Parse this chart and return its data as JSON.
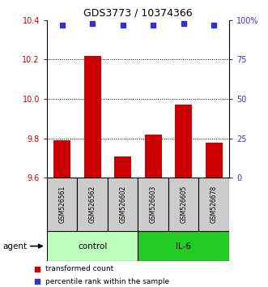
{
  "title": "GDS3773 / 10374366",
  "samples": [
    "GSM526561",
    "GSM526562",
    "GSM526602",
    "GSM526603",
    "GSM526605",
    "GSM526678"
  ],
  "bar_values": [
    9.79,
    10.22,
    9.71,
    9.82,
    9.97,
    9.78
  ],
  "percentile_values": [
    97,
    98,
    97,
    97,
    98,
    97
  ],
  "ylim_left": [
    9.6,
    10.4
  ],
  "ylim_right": [
    0,
    100
  ],
  "yticks_left": [
    9.6,
    9.8,
    10.0,
    10.2,
    10.4
  ],
  "yticks_right": [
    0,
    25,
    50,
    75,
    100
  ],
  "bar_color": "#cc0000",
  "dot_color": "#3333cc",
  "bar_baseline": 9.6,
  "group_spans": [
    {
      "label": "control",
      "xstart": -0.5,
      "xend": 2.5,
      "color": "#bbffbb"
    },
    {
      "label": "IL-6",
      "xstart": 2.5,
      "xend": 5.5,
      "color": "#22cc22"
    }
  ],
  "legend_items": [
    {
      "color": "#cc0000",
      "label": "transformed count"
    },
    {
      "color": "#3333cc",
      "label": "percentile rank within the sample"
    }
  ],
  "background_color": "#ffffff",
  "sample_box_color": "#cccccc",
  "grid_yticks": [
    9.8,
    10.0,
    10.2
  ],
  "right_tick_labels": [
    "0",
    "25",
    "50",
    "75",
    "100%"
  ]
}
